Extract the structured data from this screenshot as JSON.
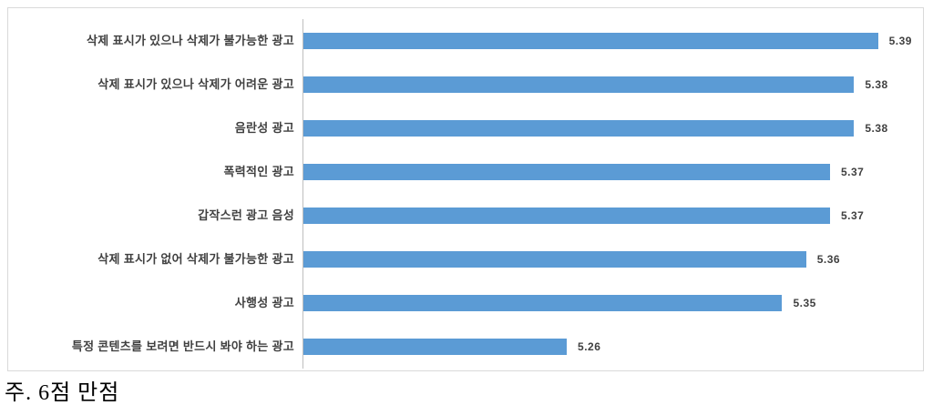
{
  "chart_data": {
    "type": "bar",
    "orientation": "horizontal",
    "title": "",
    "xlabel": "",
    "ylabel": "",
    "grid": false,
    "legend": false,
    "xlim": [
      5.15,
      5.405
    ],
    "categories": [
      "삭제 표시가 있으나 삭제가 불가능한 광고",
      "삭제 표시가 있으나 삭제가 어려운 광고",
      "음란성 광고",
      "폭력적인 광고",
      "갑작스런 광고 음성",
      "삭제 표시가 없어 삭제가 불가능한 광고",
      "사행성 광고",
      "특정 콘텐츠를 보려면 반드시 봐야 하는 광고"
    ],
    "values": [
      5.39,
      5.38,
      5.38,
      5.37,
      5.37,
      5.36,
      5.35,
      5.26
    ],
    "value_labels": [
      "5.39",
      "5.38",
      "5.38",
      "5.37",
      "5.37",
      "5.36",
      "5.35",
      "5.26"
    ],
    "colors": {
      "bar": "#5b9bd5",
      "category_text": "#404040",
      "value_text": "#404040",
      "axis_line": "#bfbfbf",
      "frame_border": "#d9d9d9",
      "background": "#ffffff"
    }
  },
  "note": {
    "text": "주. 6점 만점"
  }
}
